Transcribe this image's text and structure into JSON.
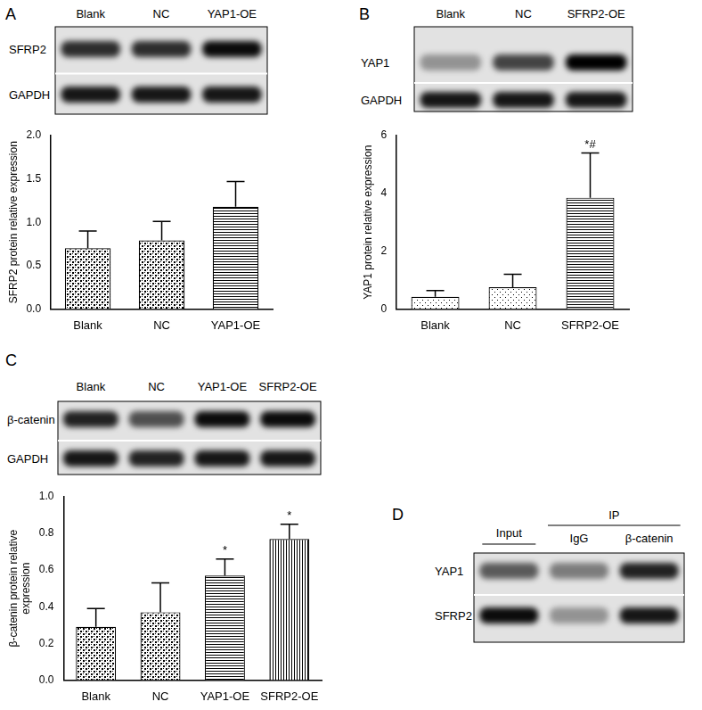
{
  "chart_data": [
    {
      "type": "bar",
      "panel": "A",
      "ylabel": "SFRP2 protein relative expression",
      "categories": [
        "Blank",
        "NC",
        "YAP1-OE"
      ],
      "values": [
        0.7,
        0.79,
        1.18
      ],
      "errors": [
        0.2,
        0.22,
        0.29
      ],
      "annotations": [
        null,
        null,
        null
      ],
      "color": "#000000",
      "ylim": [
        0,
        2.0
      ],
      "yticks": [
        {
          "value": 0,
          "label": "0.0"
        },
        {
          "value": 0.5,
          "label": "0.5"
        },
        {
          "value": 1.0,
          "label": "1.0"
        },
        {
          "value": 1.5,
          "label": "1.5"
        },
        {
          "value": 2.0,
          "label": "2.0"
        }
      ],
      "grid": false
    },
    {
      "type": "bar",
      "panel": "B",
      "ylabel": "YAP1 protein relative expression",
      "categories": [
        "Blank",
        "NC",
        "SFRP2-OE"
      ],
      "values": [
        0.42,
        0.75,
        3.85
      ],
      "errors": [
        0.22,
        0.45,
        1.55
      ],
      "annotations": [
        null,
        null,
        "*#"
      ],
      "color": "#000000",
      "ylim": [
        0,
        6
      ],
      "yticks": [
        0,
        2,
        4,
        6
      ],
      "grid": false
    },
    {
      "type": "bar",
      "panel": "C",
      "ylabel": [
        "β-catenin protein relative",
        "expression"
      ],
      "categories": [
        "Blank",
        "NC",
        "YAP1-OE",
        "SFRP2-OE"
      ],
      "values": [
        0.29,
        0.37,
        0.57,
        0.77
      ],
      "errors": [
        0.1,
        0.16,
        0.09,
        0.08
      ],
      "annotations": [
        null,
        null,
        "*",
        "*"
      ],
      "color": "#000000",
      "ylim": [
        0,
        1.0
      ],
      "yticks": [
        {
          "value": 0,
          "label": "0.0"
        },
        {
          "value": 0.2,
          "label": "0.2"
        },
        {
          "value": 0.4,
          "label": "0.4"
        },
        {
          "value": 0.6,
          "label": "0.6"
        },
        {
          "value": 0.8,
          "label": "0.8"
        },
        {
          "value": 1.0,
          "label": "1.0"
        }
      ],
      "grid": false
    }
  ],
  "blots": [
    {
      "panel": "A",
      "lanes": [
        "Blank",
        "NC",
        "YAP1-OE"
      ],
      "rows": [
        "SFRP2",
        "GAPDH"
      ]
    },
    {
      "panel": "B",
      "lanes": [
        "Blank",
        "NC",
        "SFRP2-OE"
      ],
      "rows": [
        "YAP1",
        "GAPDH"
      ]
    },
    {
      "panel": "C",
      "lanes": [
        "Blank",
        "NC",
        "YAP1-OE",
        "SFRP2-OE"
      ],
      "rows": [
        "β-catenin",
        "GAPDH"
      ]
    },
    {
      "panel": "D",
      "lanes": [
        "Input",
        "IgG",
        "β-catenin"
      ],
      "group_label": "IP",
      "rows": [
        "YAP1",
        "SFRP2"
      ]
    }
  ]
}
